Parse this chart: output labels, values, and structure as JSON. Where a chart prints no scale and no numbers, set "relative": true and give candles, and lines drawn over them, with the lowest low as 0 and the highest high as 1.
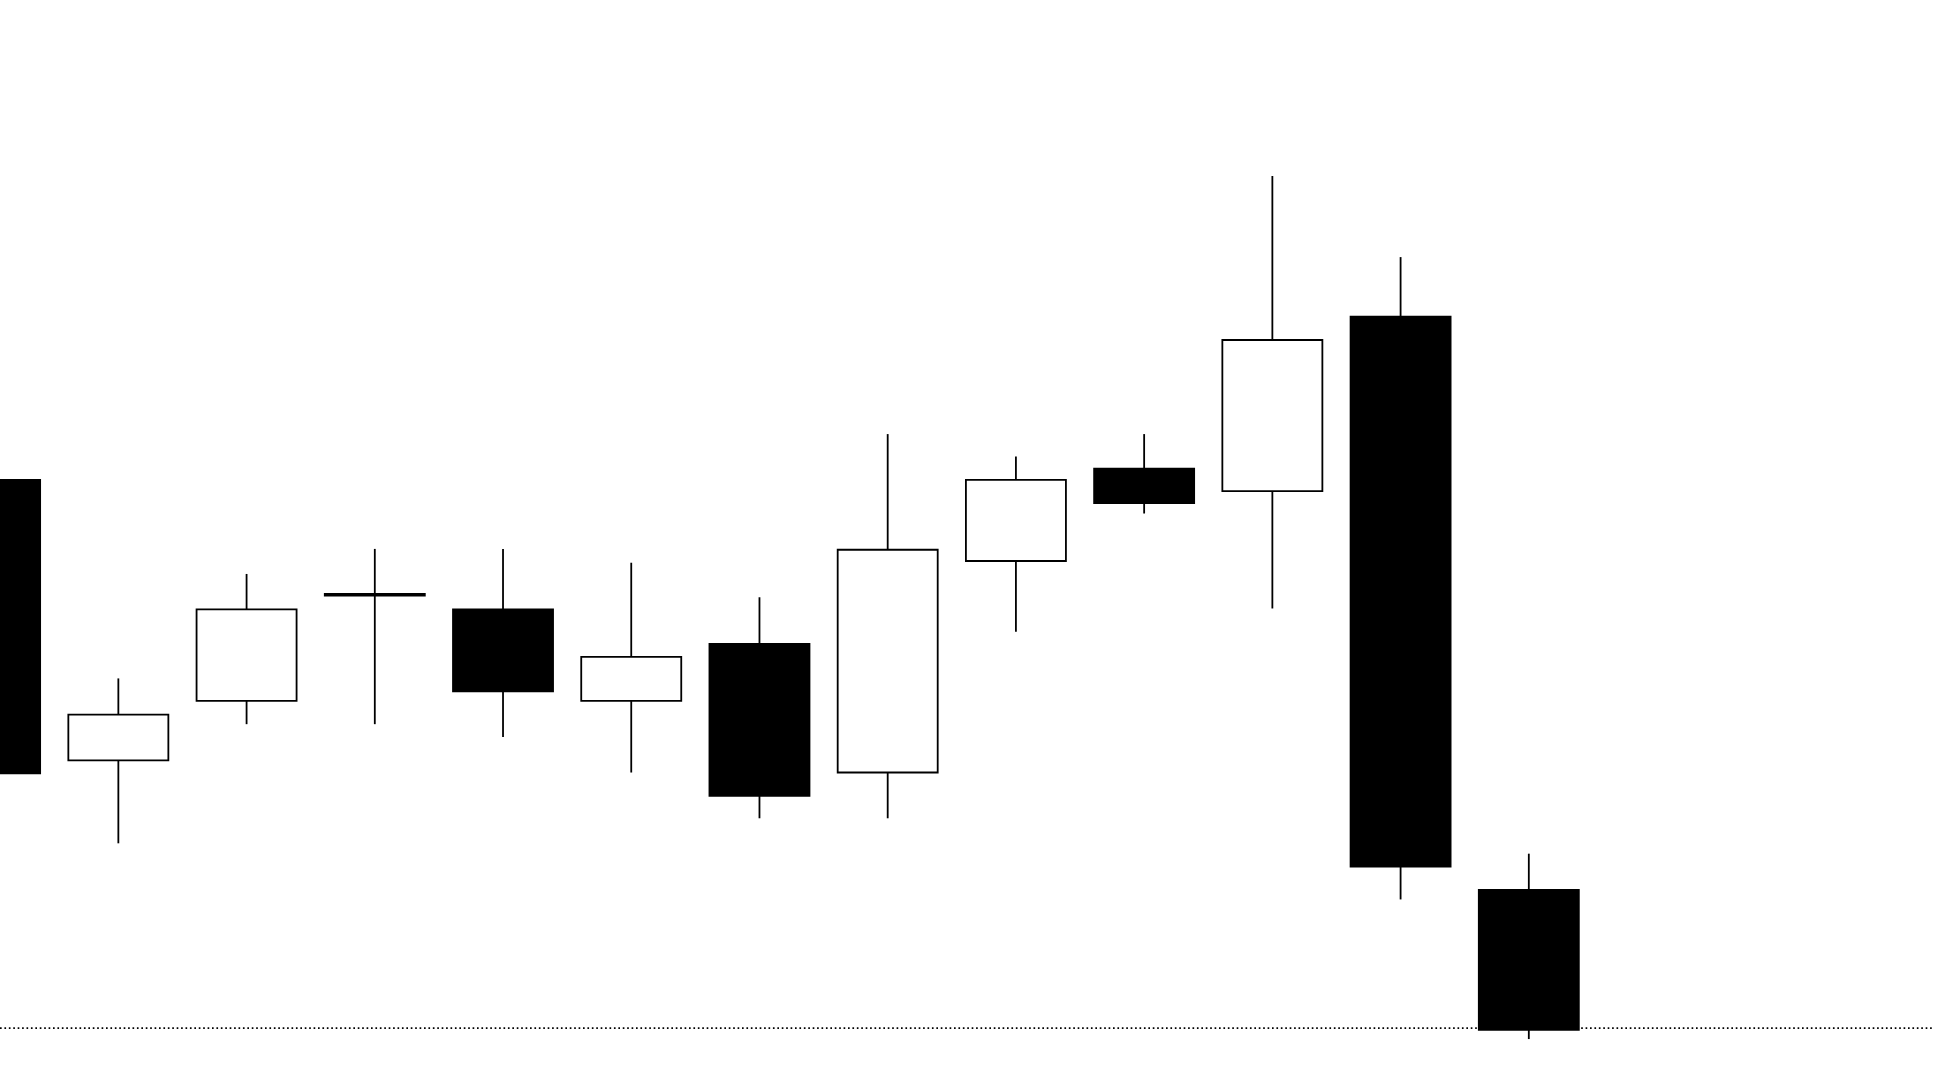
{
  "chart_data": {
    "type": "candlestick",
    "relative": true,
    "categories": [
      null,
      null,
      null,
      null,
      null,
      null,
      null,
      null,
      null,
      null,
      null,
      null,
      null
    ],
    "ohlc": [
      [
        0.648,
        0.648,
        0.308,
        0.308
      ],
      [
        0.323,
        0.418,
        0.227,
        0.376
      ],
      [
        0.392,
        0.539,
        0.365,
        0.498
      ],
      [
        0.514,
        0.568,
        0.365,
        0.514
      ],
      [
        0.498,
        0.568,
        0.35,
        0.403
      ],
      [
        0.392,
        0.552,
        0.309,
        0.443
      ],
      [
        0.458,
        0.512,
        0.256,
        0.282
      ],
      [
        0.309,
        0.701,
        0.256,
        0.567
      ],
      [
        0.554,
        0.675,
        0.472,
        0.648
      ],
      [
        0.661,
        0.701,
        0.609,
        0.621
      ],
      [
        0.635,
        1.0,
        0.499,
        0.81
      ],
      [
        0.837,
        0.906,
        0.162,
        0.2
      ],
      [
        0.173,
        0.215,
        0.0,
        0.011
      ]
    ],
    "ref_lines": [
      {
        "axis": "y",
        "value": 0.013,
        "line_style": "dotted",
        "color": "#000000"
      }
    ]
  }
}
